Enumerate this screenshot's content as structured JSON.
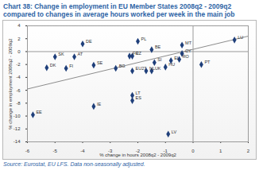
{
  "chart_data": {
    "type": "scatter",
    "title": "Chart 38: Change in employment in EU Member States 2008q2 - 2009q2 compared to changes in average hours worked per week in the main job",
    "x_label": "% change in hours 2008q2 - 2009q2",
    "y_label": "% change in employment 2008q2 - 2009q2",
    "source": "Source: Eurostat, EU LFS. Data non-seasonally adjusted.",
    "labels": [
      "LU",
      "MT",
      "CY",
      "RO",
      "EL",
      "HU",
      "PT",
      "BE",
      "PL",
      "CZ",
      "FR",
      "DE",
      "SK",
      "AT",
      "SE",
      "DK",
      "FI",
      "BG",
      "EU27",
      "NL",
      "UK",
      "SI",
      "IE",
      "LT",
      "ES",
      "LV",
      "EE"
    ],
    "x": [
      1.5,
      -0.4,
      -0.4,
      -0.5,
      -0.8,
      -1.0,
      0.3,
      -1.5,
      -2.0,
      -2.2,
      -2.3,
      -4.0,
      -5.0,
      -4.3,
      -3.6,
      -5.3,
      -4.6,
      -2.8,
      -2.2,
      -1.7,
      -1.5,
      -1.4,
      -3.6,
      -2.2,
      -2.2,
      -0.9,
      -5.8
    ],
    "values": [
      1.8,
      1.0,
      -0.3,
      -1.2,
      -1.4,
      -2.4,
      -2.0,
      0.3,
      1.6,
      -0.7,
      -0.7,
      1.2,
      -0.8,
      -0.8,
      -2.1,
      -2.5,
      -2.6,
      -2.6,
      -3.0,
      -3.0,
      -3.0,
      -1.7,
      -8.5,
      -6.8,
      -7.6,
      -12.8,
      -9.8
    ],
    "color": "#1f3f7a",
    "marker": "diamond",
    "trend_line": {
      "x": [
        -6,
        2
      ],
      "values": [
        -5.8,
        2.4
      ],
      "color": "#8c8c8c"
    },
    "xlim": [
      -6,
      2
    ],
    "xticks": [
      -6,
      -5,
      -4,
      -3,
      -2,
      -1,
      0,
      1,
      2
    ],
    "ylim": [
      -14,
      4
    ],
    "yticks": [
      -14,
      -12,
      -10,
      -8,
      -6,
      -4,
      -2,
      0,
      2,
      4
    ],
    "grid": false
  }
}
